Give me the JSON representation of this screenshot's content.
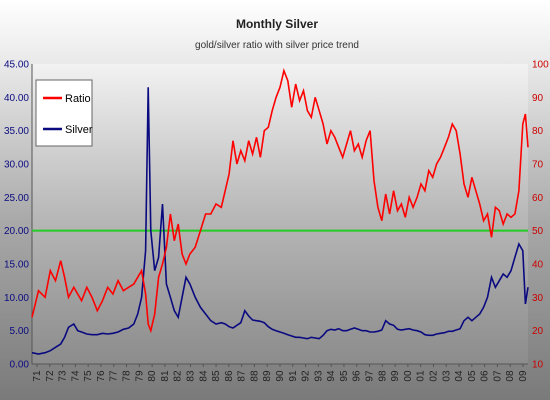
{
  "chart_data": {
    "type": "line",
    "title": "Monthly Silver",
    "subtitle": "gold/silver ratio with silver price trend",
    "x_ticks": [
      "71",
      "72",
      "73",
      "74",
      "75",
      "76",
      "77",
      "78",
      "79",
      "80",
      "81",
      "82",
      "83",
      "84",
      "85",
      "86",
      "87",
      "88",
      "89",
      "90",
      "91",
      "92",
      "93",
      "94",
      "95",
      "96",
      "97",
      "98",
      "99",
      "00",
      "01",
      "02",
      "03",
      "04",
      "05",
      "06",
      "07",
      "08",
      "09"
    ],
    "x_range": [
      1971,
      2009
    ],
    "y_left": {
      "range": [
        0,
        45
      ],
      "ticks": [
        "0.00",
        "5.00",
        "10.00",
        "15.00",
        "20.00",
        "25.00",
        "30.00",
        "35.00",
        "40.00",
        "45.00"
      ]
    },
    "y_right": {
      "range": [
        10,
        100
      ],
      "ticks": [
        "10",
        "20",
        "30",
        "40",
        "50",
        "60",
        "70",
        "80",
        "90",
        "100"
      ]
    },
    "legend": {
      "placement": "top-left",
      "entries": [
        {
          "label": "Ratio",
          "color": "#ff0000"
        },
        {
          "label": "Silver",
          "color": "#0a0a80"
        }
      ]
    },
    "reference_line": {
      "axis": "right",
      "value": 50,
      "color": "#22cc22"
    },
    "series": [
      {
        "name": "Ratio",
        "axis": "right",
        "color": "#ff0000",
        "x": [
          1971.0,
          1971.5,
          1972.0,
          1972.4,
          1972.8,
          1973.2,
          1973.5,
          1973.8,
          1974.2,
          1974.5,
          1974.8,
          1975.2,
          1975.6,
          1976.0,
          1976.4,
          1976.8,
          1977.2,
          1977.6,
          1978.0,
          1978.4,
          1978.8,
          1979.1,
          1979.4,
          1979.7,
          1979.9,
          1980.1,
          1980.4,
          1980.7,
          1981.0,
          1981.3,
          1981.6,
          1981.9,
          1982.2,
          1982.5,
          1982.8,
          1983.1,
          1983.5,
          1983.9,
          1984.3,
          1984.7,
          1985.1,
          1985.5,
          1985.8,
          1986.1,
          1986.4,
          1986.7,
          1987.0,
          1987.3,
          1987.6,
          1987.9,
          1988.2,
          1988.5,
          1988.8,
          1989.1,
          1989.4,
          1989.7,
          1990.0,
          1990.3,
          1990.6,
          1990.9,
          1991.2,
          1991.5,
          1991.8,
          1992.1,
          1992.4,
          1992.7,
          1993.0,
          1993.3,
          1993.6,
          1993.9,
          1994.2,
          1994.5,
          1994.8,
          1995.1,
          1995.4,
          1995.7,
          1996.0,
          1996.3,
          1996.6,
          1996.9,
          1997.2,
          1997.5,
          1997.8,
          1998.1,
          1998.4,
          1998.7,
          1999.0,
          1999.3,
          1999.6,
          1999.9,
          2000.2,
          2000.5,
          2000.8,
          2001.1,
          2001.4,
          2001.7,
          2002.0,
          2002.3,
          2002.6,
          2002.9,
          2003.2,
          2003.5,
          2003.8,
          2004.1,
          2004.4,
          2004.7,
          2005.0,
          2005.3,
          2005.6,
          2005.9,
          2006.2,
          2006.5,
          2006.8,
          2007.1,
          2007.4,
          2007.7,
          2008.0,
          2008.3,
          2008.6,
          2008.8,
          2009.0
        ],
        "y": [
          24,
          32,
          30,
          38,
          35,
          41,
          36,
          30,
          33,
          31,
          29,
          33,
          30,
          26,
          29,
          33,
          31,
          35,
          32,
          33,
          34,
          36,
          38,
          31,
          22,
          20,
          25,
          36,
          40,
          45,
          55,
          47,
          52,
          43,
          40,
          43,
          45,
          50,
          55,
          55,
          58,
          57,
          62,
          67,
          77,
          70,
          74,
          71,
          77,
          73,
          78,
          72,
          80,
          81,
          86,
          90,
          93,
          98,
          95,
          87,
          94,
          89,
          92,
          86,
          84,
          90,
          86,
          82,
          76,
          80,
          78,
          75,
          72,
          76,
          80,
          74,
          76,
          72,
          77,
          80,
          65,
          57,
          53,
          61,
          55,
          62,
          56,
          58,
          54,
          60,
          57,
          60,
          64,
          62,
          68,
          66,
          70,
          72,
          75,
          78,
          82,
          80,
          73,
          64,
          60,
          66,
          62,
          58,
          53,
          55,
          48,
          57,
          56,
          52,
          55,
          54,
          55,
          62,
          82,
          85,
          75
        ]
      },
      {
        "name": "Silver",
        "axis": "left",
        "color": "#0a0a80",
        "x": [
          1971.0,
          1971.5,
          1972.0,
          1972.4,
          1972.8,
          1973.2,
          1973.5,
          1973.8,
          1974.2,
          1974.5,
          1974.8,
          1975.2,
          1975.6,
          1976.0,
          1976.4,
          1976.8,
          1977.2,
          1977.6,
          1978.0,
          1978.4,
          1978.8,
          1979.1,
          1979.4,
          1979.7,
          1979.9,
          1980.1,
          1980.4,
          1980.7,
          1981.0,
          1981.3,
          1981.6,
          1981.9,
          1982.2,
          1982.5,
          1982.8,
          1983.1,
          1983.5,
          1983.9,
          1984.3,
          1984.7,
          1985.1,
          1985.5,
          1985.8,
          1986.1,
          1986.4,
          1986.7,
          1987.0,
          1987.3,
          1987.6,
          1987.9,
          1988.2,
          1988.5,
          1988.8,
          1989.1,
          1989.4,
          1989.7,
          1990.0,
          1990.3,
          1990.6,
          1990.9,
          1991.2,
          1991.5,
          1991.8,
          1992.1,
          1992.4,
          1992.7,
          1993.0,
          1993.3,
          1993.6,
          1993.9,
          1994.2,
          1994.5,
          1994.8,
          1995.1,
          1995.4,
          1995.7,
          1996.0,
          1996.3,
          1996.6,
          1996.9,
          1997.2,
          1997.5,
          1997.8,
          1998.1,
          1998.4,
          1998.7,
          1999.0,
          1999.3,
          1999.6,
          1999.9,
          2000.2,
          2000.5,
          2000.8,
          2001.1,
          2001.4,
          2001.7,
          2002.0,
          2002.3,
          2002.6,
          2002.9,
          2003.2,
          2003.5,
          2003.8,
          2004.1,
          2004.4,
          2004.7,
          2005.0,
          2005.3,
          2005.6,
          2005.9,
          2006.2,
          2006.5,
          2006.8,
          2007.1,
          2007.4,
          2007.7,
          2008.0,
          2008.3,
          2008.6,
          2008.8,
          2009.0
        ],
        "y": [
          1.7,
          1.5,
          1.7,
          2.0,
          2.5,
          3.0,
          4.0,
          5.5,
          6.0,
          5.0,
          4.8,
          4.5,
          4.4,
          4.4,
          4.6,
          4.5,
          4.6,
          4.8,
          5.2,
          5.4,
          6.0,
          7.5,
          10.0,
          17.0,
          41.5,
          20.0,
          14.0,
          16.0,
          24.0,
          12.0,
          10.0,
          8.0,
          7.0,
          10.0,
          13.0,
          12.0,
          10.0,
          8.5,
          7.5,
          6.5,
          6.0,
          6.2,
          6.0,
          5.6,
          5.4,
          5.8,
          6.2,
          8.0,
          7.2,
          6.6,
          6.5,
          6.4,
          6.2,
          5.6,
          5.2,
          5.0,
          4.8,
          4.6,
          4.4,
          4.2,
          4.0,
          4.0,
          3.9,
          3.8,
          4.0,
          3.9,
          3.8,
          4.3,
          5.0,
          5.2,
          5.1,
          5.3,
          5.0,
          5.0,
          5.2,
          5.4,
          5.2,
          5.0,
          5.0,
          4.8,
          4.8,
          4.9,
          5.1,
          6.5,
          6.0,
          5.8,
          5.2,
          5.1,
          5.2,
          5.3,
          5.1,
          5.0,
          4.8,
          4.4,
          4.3,
          4.3,
          4.5,
          4.6,
          4.7,
          4.9,
          4.9,
          5.1,
          5.3,
          6.5,
          7.0,
          6.5,
          7.0,
          7.5,
          8.5,
          10.0,
          13.0,
          11.5,
          12.5,
          13.5,
          13.0,
          14.0,
          16.0,
          18.0,
          17.0,
          9.0,
          11.5
        ]
      }
    ]
  }
}
